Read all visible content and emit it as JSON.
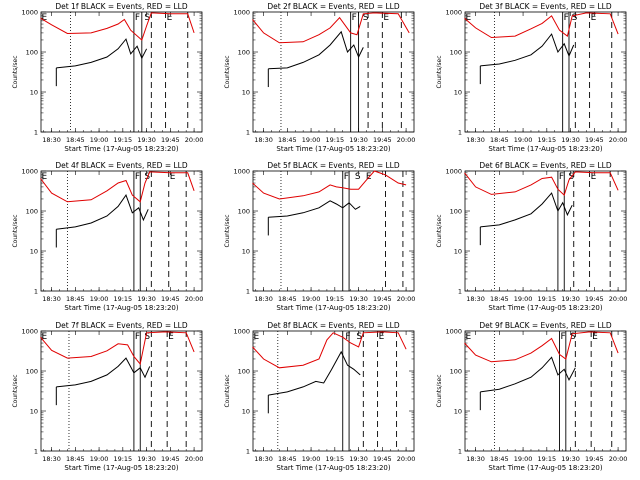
{
  "chart_data": {
    "type": "line",
    "y_scale": "log",
    "ylim": [
      1,
      1000
    ],
    "ytick_labels": [
      "1",
      "10",
      "100",
      "1000"
    ],
    "ylabel": "Counts/sec",
    "xlabel": "Start Time (17-Aug-05 18:23:20)",
    "xlim": [
      "18:23:20",
      "20:05:00"
    ],
    "xtick_labels": [
      "18:30",
      "18:45",
      "19:00",
      "19:15",
      "19:30",
      "19:45",
      "20:00"
    ],
    "series_legend": "BLACK = Events, RED = LLD",
    "series_colors": {
      "events": "#000000",
      "lld": "#e00000"
    },
    "markers": {
      "E": "E",
      "F": "F",
      "S": "S"
    },
    "panels": [
      {
        "title": "Det 1f BLACK = Events, RED = LLD",
        "dotted": [
          "18:42"
        ],
        "solid": [
          "19:22",
          "19:27"
        ],
        "dashed": [
          "19:33",
          "19:42",
          "19:56"
        ],
        "labels": [
          {
            "t": "18:23",
            "text": "E"
          },
          {
            "t": "19:22",
            "text": "F"
          },
          {
            "t": "19:28",
            "text": "S"
          },
          {
            "t": "19:42",
            "text": "E"
          }
        ],
        "lld": [
          [
            "18:23",
            700
          ],
          [
            "18:30",
            480
          ],
          [
            "18:40",
            290
          ],
          [
            "18:55",
            300
          ],
          [
            "19:05",
            390
          ],
          [
            "19:12",
            500
          ],
          [
            "19:16",
            650
          ],
          [
            "19:20",
            350
          ],
          [
            "19:27",
            200
          ],
          [
            "19:30",
            450
          ],
          [
            "19:33",
            950
          ],
          [
            "19:45",
            900
          ],
          [
            "19:56",
            900
          ],
          [
            "20:00",
            300
          ]
        ],
        "events": [
          [
            "18:33",
            40
          ],
          [
            "18:45",
            45
          ],
          [
            "18:55",
            55
          ],
          [
            "19:05",
            75
          ],
          [
            "19:12",
            120
          ],
          [
            "19:17",
            210
          ],
          [
            "19:20",
            90
          ],
          [
            "19:24",
            140
          ],
          [
            "19:27",
            70
          ],
          [
            "19:30",
            120
          ]
        ]
      },
      {
        "title": "Det 2f BLACK = Events, RED = LLD",
        "dotted": [
          "18:41"
        ],
        "solid": [
          "19:25",
          "19:30"
        ],
        "dashed": [
          "19:36",
          "19:45",
          "19:57"
        ],
        "labels": [
          {
            "t": "19:25",
            "text": "F"
          },
          {
            "t": "19:32",
            "text": "S"
          },
          {
            "t": "19:45",
            "text": "E"
          }
        ],
        "lld": [
          [
            "18:23",
            650
          ],
          [
            "18:30",
            300
          ],
          [
            "18:40",
            170
          ],
          [
            "18:55",
            180
          ],
          [
            "19:05",
            270
          ],
          [
            "19:12",
            400
          ],
          [
            "19:18",
            720
          ],
          [
            "19:25",
            300
          ],
          [
            "19:29",
            270
          ],
          [
            "19:33",
            900
          ],
          [
            "19:40",
            950
          ],
          [
            "19:55",
            900
          ],
          [
            "20:02",
            300
          ]
        ],
        "events": [
          [
            "18:33",
            38
          ],
          [
            "18:45",
            40
          ],
          [
            "18:55",
            55
          ],
          [
            "19:05",
            85
          ],
          [
            "19:12",
            150
          ],
          [
            "19:19",
            320
          ],
          [
            "19:23",
            100
          ],
          [
            "19:27",
            150
          ],
          [
            "19:30",
            75
          ],
          [
            "19:33",
            130
          ]
        ]
      },
      {
        "title": "Det 3f BLACK = Events, RED = LLD",
        "dotted": [
          "18:42"
        ],
        "solid": [
          "19:25",
          "19:29"
        ],
        "dashed": [
          "19:33",
          "19:42",
          "19:56"
        ],
        "labels": [
          {
            "t": "18:23",
            "text": "E"
          },
          {
            "t": "19:25",
            "text": "F"
          },
          {
            "t": "19:30",
            "text": "S"
          },
          {
            "t": "19:42",
            "text": "E"
          }
        ],
        "lld": [
          [
            "18:23",
            700
          ],
          [
            "18:30",
            400
          ],
          [
            "18:40",
            230
          ],
          [
            "18:55",
            250
          ],
          [
            "19:05",
            380
          ],
          [
            "19:12",
            520
          ],
          [
            "19:18",
            800
          ],
          [
            "19:23",
            350
          ],
          [
            "19:28",
            250
          ],
          [
            "19:31",
            800
          ],
          [
            "19:40",
            950
          ],
          [
            "19:55",
            900
          ],
          [
            "20:00",
            280
          ]
        ],
        "events": [
          [
            "18:33",
            45
          ],
          [
            "18:45",
            50
          ],
          [
            "18:55",
            62
          ],
          [
            "19:05",
            85
          ],
          [
            "19:12",
            140
          ],
          [
            "19:18",
            280
          ],
          [
            "19:22",
            100
          ],
          [
            "19:26",
            160
          ],
          [
            "19:29",
            80
          ],
          [
            "19:32",
            150
          ]
        ]
      },
      {
        "title": "Det 4f BLACK = Events, RED = LLD",
        "dotted": [
          "18:40"
        ],
        "solid": [
          "19:22",
          "19:26"
        ],
        "dashed": [
          "19:33",
          "19:44",
          "19:55"
        ],
        "labels": [
          {
            "t": "18:23",
            "text": "E"
          },
          {
            "t": "19:22",
            "text": "F"
          },
          {
            "t": "19:28",
            "text": "S"
          },
          {
            "t": "19:44",
            "text": "E"
          }
        ],
        "lld": [
          [
            "18:23",
            650
          ],
          [
            "18:30",
            280
          ],
          [
            "18:40",
            170
          ],
          [
            "18:55",
            190
          ],
          [
            "19:05",
            320
          ],
          [
            "19:12",
            500
          ],
          [
            "19:17",
            580
          ],
          [
            "19:21",
            250
          ],
          [
            "19:26",
            170
          ],
          [
            "19:29",
            500
          ],
          [
            "19:32",
            950
          ],
          [
            "19:45",
            900
          ],
          [
            "19:56",
            900
          ],
          [
            "20:00",
            320
          ]
        ],
        "events": [
          [
            "18:33",
            35
          ],
          [
            "18:45",
            40
          ],
          [
            "18:55",
            50
          ],
          [
            "19:05",
            75
          ],
          [
            "19:12",
            130
          ],
          [
            "19:17",
            250
          ],
          [
            "19:21",
            90
          ],
          [
            "19:25",
            120
          ],
          [
            "19:28",
            60
          ],
          [
            "19:31",
            110
          ]
        ]
      },
      {
        "title": "Det 5f BLACK = Events, RED = LLD",
        "dotted": [
          "18:41"
        ],
        "solid": [
          "19:20",
          "19:24"
        ],
        "dashed": [
          "19:47",
          "19:58"
        ],
        "labels": [
          {
            "t": "19:20",
            "text": "F"
          },
          {
            "t": "19:27",
            "text": "S"
          },
          {
            "t": "19:34",
            "text": "E"
          }
        ],
        "lld": [
          [
            "18:23",
            500
          ],
          [
            "18:30",
            280
          ],
          [
            "18:40",
            200
          ],
          [
            "18:55",
            240
          ],
          [
            "19:05",
            300
          ],
          [
            "19:12",
            450
          ],
          [
            "19:16",
            400
          ],
          [
            "19:20",
            380
          ],
          [
            "19:25",
            350
          ],
          [
            "19:30",
            350
          ],
          [
            "19:35",
            600
          ],
          [
            "19:40",
            1000
          ],
          [
            "19:47",
            800
          ],
          [
            "19:55",
            500
          ],
          [
            "20:00",
            450
          ]
        ],
        "events": [
          [
            "18:33",
            70
          ],
          [
            "18:45",
            75
          ],
          [
            "18:55",
            90
          ],
          [
            "19:05",
            120
          ],
          [
            "19:12",
            180
          ],
          [
            "19:16",
            150
          ],
          [
            "19:20",
            120
          ],
          [
            "19:24",
            160
          ],
          [
            "19:28",
            110
          ],
          [
            "19:31",
            130
          ]
        ]
      },
      {
        "title": "Det 6f BLACK = Events, RED = LLD",
        "dotted": [
          "18:42"
        ],
        "solid": [
          "19:22",
          "19:26"
        ],
        "dashed": [
          "19:32",
          "19:42",
          "19:55"
        ],
        "labels": [
          {
            "t": "19:22",
            "text": "F"
          },
          {
            "t": "19:28",
            "text": "S"
          },
          {
            "t": "19:42",
            "text": "E"
          }
        ],
        "lld": [
          [
            "18:23",
            900
          ],
          [
            "18:30",
            400
          ],
          [
            "18:40",
            260
          ],
          [
            "18:55",
            300
          ],
          [
            "19:05",
            450
          ],
          [
            "19:12",
            650
          ],
          [
            "19:18",
            700
          ],
          [
            "19:22",
            350
          ],
          [
            "19:26",
            250
          ],
          [
            "19:29",
            600
          ],
          [
            "19:33",
            950
          ],
          [
            "19:45",
            900
          ],
          [
            "19:55",
            900
          ],
          [
            "20:00",
            330
          ]
        ],
        "events": [
          [
            "18:33",
            40
          ],
          [
            "18:45",
            45
          ],
          [
            "18:55",
            60
          ],
          [
            "19:05",
            85
          ],
          [
            "19:12",
            150
          ],
          [
            "19:18",
            280
          ],
          [
            "19:22",
            100
          ],
          [
            "19:25",
            160
          ],
          [
            "19:28",
            80
          ],
          [
            "19:31",
            140
          ]
        ]
      },
      {
        "title": "Det 7f BLACK = Events, RED = LLD",
        "dotted": [
          "18:41"
        ],
        "solid": [
          "19:22",
          "19:26"
        ],
        "dashed": [
          "19:33",
          "19:43",
          "19:55"
        ],
        "labels": [
          {
            "t": "18:23",
            "text": "E"
          },
          {
            "t": "19:22",
            "text": "F"
          },
          {
            "t": "19:28",
            "text": "S"
          },
          {
            "t": "19:43",
            "text": "E"
          }
        ],
        "lld": [
          [
            "18:23",
            700
          ],
          [
            "18:30",
            330
          ],
          [
            "18:40",
            210
          ],
          [
            "18:55",
            230
          ],
          [
            "19:05",
            320
          ],
          [
            "19:12",
            480
          ],
          [
            "19:18",
            450
          ],
          [
            "19:22",
            230
          ],
          [
            "19:26",
            150
          ],
          [
            "19:30",
            900
          ],
          [
            "19:42",
            950
          ],
          [
            "19:55",
            900
          ],
          [
            "20:00",
            300
          ]
        ],
        "events": [
          [
            "18:33",
            40
          ],
          [
            "18:45",
            45
          ],
          [
            "18:55",
            55
          ],
          [
            "19:05",
            80
          ],
          [
            "19:12",
            130
          ],
          [
            "19:17",
            210
          ],
          [
            "19:22",
            90
          ],
          [
            "19:26",
            120
          ],
          [
            "19:29",
            70
          ],
          [
            "19:32",
            130
          ]
        ]
      },
      {
        "title": "Det 8f BLACK = Events, RED = LLD",
        "dotted": [
          "18:39"
        ],
        "solid": [
          "19:20",
          "19:24"
        ],
        "dashed": [
          "19:33",
          "19:42",
          "19:54"
        ],
        "labels": [
          {
            "t": "18:23",
            "text": "E"
          },
          {
            "t": "19:21",
            "text": "F"
          },
          {
            "t": "19:28",
            "text": "S"
          },
          {
            "t": "19:42",
            "text": "E"
          }
        ],
        "lld": [
          [
            "18:23",
            400
          ],
          [
            "18:30",
            200
          ],
          [
            "18:40",
            120
          ],
          [
            "18:55",
            140
          ],
          [
            "19:05",
            200
          ],
          [
            "19:10",
            600
          ],
          [
            "19:14",
            900
          ],
          [
            "19:20",
            700
          ],
          [
            "19:25",
            500
          ],
          [
            "19:30",
            400
          ],
          [
            "19:33",
            900
          ],
          [
            "19:45",
            950
          ],
          [
            "19:55",
            900
          ],
          [
            "20:00",
            350
          ]
        ],
        "events": [
          [
            "18:33",
            25
          ],
          [
            "18:45",
            30
          ],
          [
            "18:55",
            40
          ],
          [
            "19:03",
            55
          ],
          [
            "19:08",
            50
          ],
          [
            "19:13",
            110
          ],
          [
            "19:19",
            300
          ],
          [
            "19:23",
            140
          ],
          [
            "19:27",
            110
          ],
          [
            "19:31",
            80
          ]
        ]
      },
      {
        "title": "Det 9f BLACK = Events, RED = LLD",
        "dotted": [
          "18:42"
        ],
        "solid": [
          "19:23",
          "19:27"
        ],
        "dashed": [
          "19:33",
          "19:43",
          "19:56"
        ],
        "labels": [
          {
            "t": "18:23",
            "text": "E"
          },
          {
            "t": "19:23",
            "text": "F"
          },
          {
            "t": "19:29",
            "text": "S"
          },
          {
            "t": "19:43",
            "text": "E"
          }
        ],
        "lld": [
          [
            "18:23",
            500
          ],
          [
            "18:30",
            250
          ],
          [
            "18:40",
            170
          ],
          [
            "18:55",
            190
          ],
          [
            "19:05",
            280
          ],
          [
            "19:12",
            430
          ],
          [
            "19:18",
            650
          ],
          [
            "19:23",
            260
          ],
          [
            "19:27",
            200
          ],
          [
            "19:31",
            850
          ],
          [
            "19:42",
            950
          ],
          [
            "19:55",
            900
          ],
          [
            "20:00",
            280
          ]
        ],
        "events": [
          [
            "18:33",
            30
          ],
          [
            "18:45",
            35
          ],
          [
            "18:55",
            48
          ],
          [
            "19:05",
            70
          ],
          [
            "19:12",
            120
          ],
          [
            "19:18",
            220
          ],
          [
            "19:22",
            80
          ],
          [
            "19:26",
            110
          ],
          [
            "19:29",
            60
          ],
          [
            "19:33",
            120
          ]
        ]
      }
    ]
  }
}
